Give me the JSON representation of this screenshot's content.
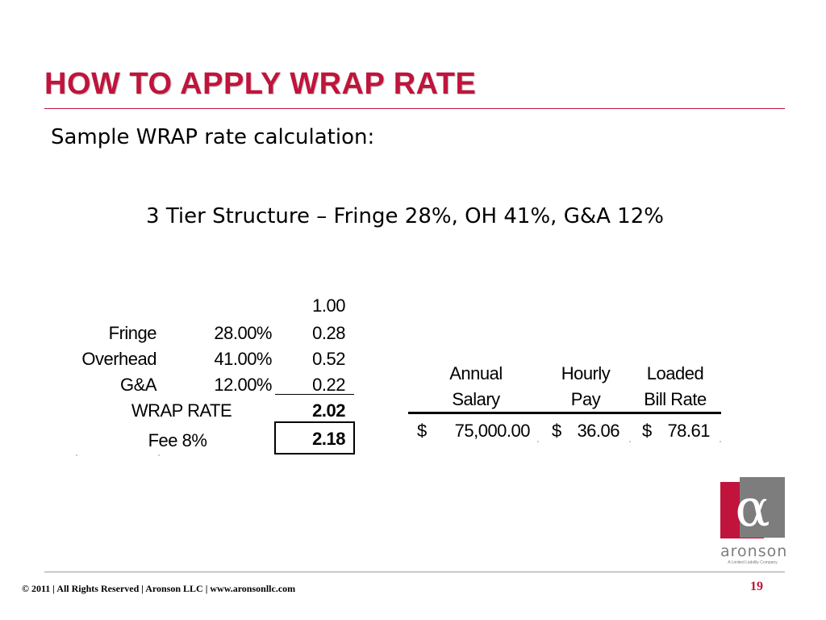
{
  "slide": {
    "title": "HOW TO APPLY WRAP RATE",
    "subtitle": "Sample WRAP rate calculation:",
    "structure": "3 Tier Structure – Fringe 28%, OH 41%, G&A 12%"
  },
  "wrap_table": {
    "base": "1.00",
    "rows": [
      {
        "label": "Fringe",
        "rate": "28.00%",
        "value": "0.28"
      },
      {
        "label": "Overhead",
        "rate": "41.00%",
        "value": "0.52"
      },
      {
        "label": "G&A",
        "rate": "12.00%",
        "value": "0.22"
      }
    ],
    "wrap_rate_label": "WRAP RATE",
    "wrap_rate_value": "2.02",
    "fee_label": "Fee 8%",
    "fee_value": "2.18"
  },
  "pay_table": {
    "headers": [
      {
        "line1": "Annual",
        "line2": "Salary"
      },
      {
        "line1": "Hourly",
        "line2": "Pay"
      },
      {
        "line1": "Loaded",
        "line2": "Bill Rate"
      }
    ],
    "currency": "$",
    "values": [
      "75,000.00",
      "36.06",
      "78.61"
    ]
  },
  "logo": {
    "symbol": "α",
    "name": "aronson",
    "tagline": "A Limited Liability Company"
  },
  "footer": {
    "text": "© 2011 | All Rights Reserved | Aronson LLC | www.aronsonllc.com",
    "page_number": "19"
  },
  "colors": {
    "accent": "#C0143C",
    "logo_gray": "#7d7d7d"
  }
}
